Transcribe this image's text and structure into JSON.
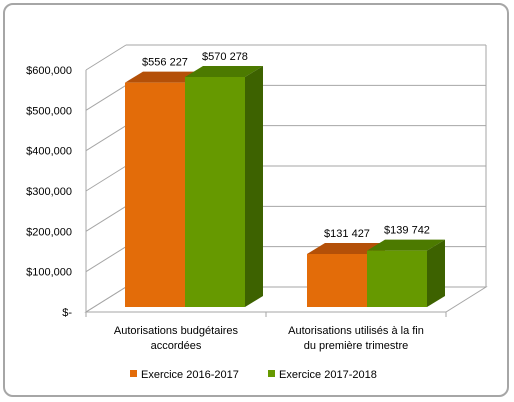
{
  "chart_data": {
    "type": "bar",
    "title": "",
    "xlabel": "",
    "ylabel": "",
    "categories": [
      [
        "Autorisations budgétaires",
        "accordées"
      ],
      [
        "Autorisations utilisés à la fin",
        "du première trimestre"
      ]
    ],
    "series": [
      {
        "name": "Exercice 2016-2017",
        "values": [
          556227,
          131427
        ],
        "labels": [
          "$556 227",
          "$131 427"
        ]
      },
      {
        "name": "Exercice 2017-2018",
        "values": [
          570278,
          139742
        ],
        "labels": [
          "$570 278",
          "$139 742"
        ]
      }
    ],
    "ylim": [
      0,
      600000
    ],
    "yticks": [
      {
        "value": 0,
        "label": "$-"
      },
      {
        "value": 100000,
        "label": "$100,000"
      },
      {
        "value": 200000,
        "label": "$200,000"
      },
      {
        "value": 300000,
        "label": "$300,000"
      },
      {
        "value": 400000,
        "label": "$400,000"
      },
      {
        "value": 500000,
        "label": "$500,000"
      },
      {
        "value": 600000,
        "label": "$600,000"
      }
    ],
    "grid": true,
    "three_d": true,
    "legend_position": "bottom",
    "colors": {
      "series1_front": "#e36c09",
      "series1_top": "#b45008",
      "series1_side": "#a84b07",
      "series2_front": "#669900",
      "series2_top": "#4c7a00",
      "series2_side": "#3d6200",
      "grid": "#a6a6a6"
    }
  }
}
